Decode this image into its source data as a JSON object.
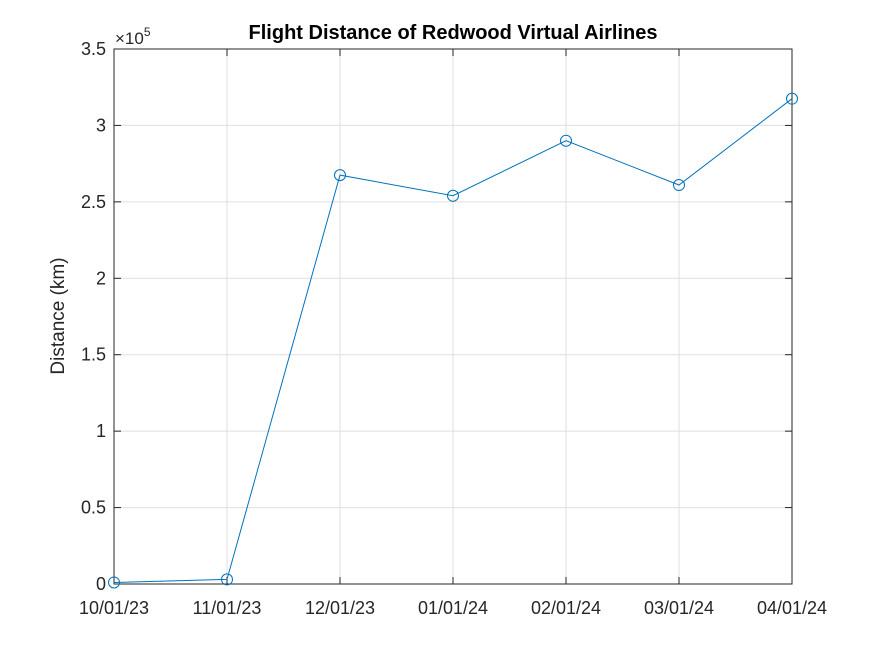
{
  "chart_data": {
    "type": "line",
    "title": "Flight Distance of Redwood Virtual Airlines",
    "xlabel": "",
    "ylabel": "Distance (km)",
    "x": [
      "10/01/23",
      "11/01/23",
      "12/01/23",
      "01/01/24",
      "02/01/24",
      "03/01/24",
      "04/01/24"
    ],
    "series": [
      {
        "values": [
          1000,
          3000,
          267500,
          254000,
          290000,
          261000,
          317500
        ],
        "color": "#0072BD",
        "marker": "circle"
      }
    ],
    "xticks": [
      "10/01/23",
      "11/01/23",
      "12/01/23",
      "01/01/24",
      "02/01/24",
      "03/01/24",
      "04/01/24"
    ],
    "yticks": [
      0,
      0.5,
      1,
      1.5,
      2,
      2.5,
      3,
      3.5
    ],
    "ytick_labels": [
      "0",
      "0.5",
      "1",
      "1.5",
      "2",
      "2.5",
      "3",
      "3.5"
    ],
    "y_exponent": {
      "base": "×10",
      "power": "5"
    },
    "ylim": [
      0,
      350000
    ],
    "grid": true
  }
}
